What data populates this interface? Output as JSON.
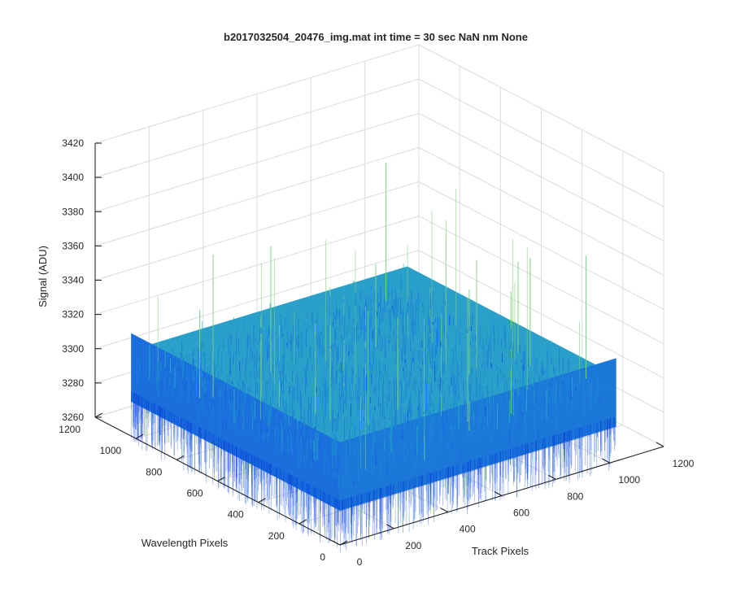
{
  "chart_data": {
    "type": "surface",
    "title": "b2017032504_20476_img.mat int time = 30 sec  NaN nm None",
    "xlabel": "Track Pixels",
    "ylabel": "Wavelength Pixels",
    "zlabel": "Signal (ADU)",
    "xlim": [
      0,
      1200
    ],
    "ylim": [
      0,
      1200
    ],
    "zlim": [
      3260,
      3420
    ],
    "xticks": [
      "0",
      "200",
      "400",
      "600",
      "800",
      "1000",
      "1200"
    ],
    "yticks": [
      "0",
      "200",
      "400",
      "600",
      "800",
      "1000",
      "1200"
    ],
    "zticks": [
      "3260",
      "3280",
      "3300",
      "3320",
      "3340",
      "3360",
      "3380",
      "3400",
      "3420"
    ],
    "grid": true,
    "surface": {
      "x_extent": [
        0,
        1024
      ],
      "y_extent": [
        0,
        1024
      ],
      "mean_signal": 3300,
      "typical_range": [
        3280,
        3320
      ],
      "max_spike": 3385,
      "min_dip": 3255
    },
    "colormap": [
      "#0b3fd6",
      "#1460e3",
      "#1d86d6",
      "#25a9c4",
      "#3cc3a6",
      "#7fcf87"
    ]
  }
}
